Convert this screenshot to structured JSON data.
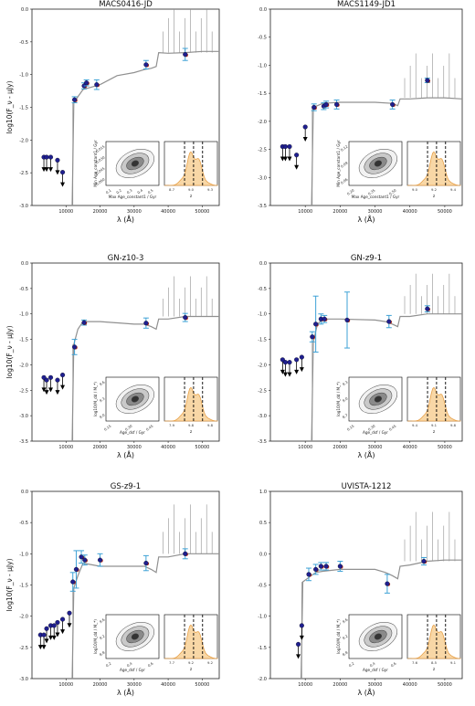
{
  "chart_data": [
    {
      "type": "line",
      "title": "MACS0416-JD",
      "xlabel": "λ (Å)",
      "ylabel": "log10(F_ν - μJy)",
      "ylim": [
        -3.25,
        0.0
      ],
      "xlim": [
        0,
        55000
      ],
      "yticks": [
        "-3.0",
        "-2.5",
        "-2.0",
        "-1.5",
        "-1.0",
        "-0.5",
        "0.0"
      ],
      "xticks": [
        "10000",
        "20000",
        "30000",
        "40000",
        "50000"
      ],
      "break": 12000,
      "model": [
        [
          11800,
          -3.4
        ],
        [
          12300,
          -1.55
        ],
        [
          13500,
          -1.45
        ],
        [
          15000,
          -1.33
        ],
        [
          20000,
          -1.25
        ],
        [
          25000,
          -1.1
        ],
        [
          30000,
          -1.05
        ],
        [
          33000,
          -1.0
        ],
        [
          35000,
          -0.98
        ],
        [
          36500,
          -0.95
        ],
        [
          37200,
          -0.72
        ],
        [
          40000,
          -0.73
        ],
        [
          45000,
          -0.72
        ],
        [
          50000,
          -0.7
        ],
        [
          55000,
          -0.7
        ]
      ],
      "detections": [
        [
          12500,
          -1.5,
          0.05
        ],
        [
          15300,
          -1.27,
          0.05
        ],
        [
          16000,
          -1.22,
          0.05
        ],
        [
          19000,
          -1.25,
          0.08
        ],
        [
          33500,
          -0.92,
          0.07
        ],
        [
          45000,
          -0.75,
          0.1
        ]
      ],
      "upper_limits": [
        [
          3500,
          -2.45
        ],
        [
          4300,
          -2.45
        ],
        [
          5500,
          -2.45
        ],
        [
          7500,
          -2.5
        ],
        [
          9000,
          -2.7
        ]
      ],
      "inset": {
        "contour_xlabel": "Max Age_constant1 / Gyr",
        "contour_ylabel": "Min Age_constant1 / Gyr",
        "contour_xticks": [
          "0.1",
          "0.2",
          "0.3",
          "0.4",
          "0.5"
        ],
        "contour_yticks": [
          "0.060",
          "0.045",
          "0.030",
          "0.015"
        ],
        "hist_xlabel": "z",
        "hist_xticks": [
          "8.7",
          "9.0",
          "9.3"
        ]
      }
    },
    {
      "type": "line",
      "title": "MACS1149-JD1",
      "xlabel": "λ (Å)",
      "ylabel": "",
      "ylim": [
        -3.5,
        0.0
      ],
      "xlim": [
        0,
        55000
      ],
      "yticks": [
        "-3.5",
        "-3.0",
        "-2.5",
        "-2.0",
        "-1.5",
        "-1.0",
        "-0.5",
        "0.0"
      ],
      "xticks": [
        "10000",
        "20000",
        "30000",
        "40000",
        "50000"
      ],
      "break": 12000,
      "model": [
        [
          11800,
          -3.6
        ],
        [
          12300,
          -1.75
        ],
        [
          13500,
          -1.72
        ],
        [
          15000,
          -1.68
        ],
        [
          20000,
          -1.66
        ],
        [
          30000,
          -1.66
        ],
        [
          35000,
          -1.68
        ],
        [
          36500,
          -1.72
        ],
        [
          37200,
          -1.6
        ],
        [
          40000,
          -1.6
        ],
        [
          45000,
          -1.58
        ],
        [
          50000,
          -1.58
        ],
        [
          55000,
          -1.6
        ]
      ],
      "detections": [
        [
          12500,
          -1.75,
          0.06
        ],
        [
          15300,
          -1.73,
          0.06
        ],
        [
          16000,
          -1.7,
          0.06
        ],
        [
          19000,
          -1.7,
          0.08
        ],
        [
          35000,
          -1.7,
          0.08
        ],
        [
          45000,
          -1.27,
          0.04
        ]
      ],
      "upper_limits": [
        [
          3500,
          -2.45
        ],
        [
          4300,
          -2.45
        ],
        [
          5500,
          -2.45
        ],
        [
          7500,
          -2.6
        ],
        [
          10000,
          -2.1
        ]
      ],
      "inset": {
        "contour_xlabel": "Max Age_constant1 / Gyr",
        "contour_ylabel": "Min Age_constant1 / Gyr",
        "contour_xticks": [
          "0.20",
          "0.35",
          "0.50"
        ],
        "contour_yticks": [
          "0.06",
          "0.09",
          "0.12"
        ],
        "hist_xlabel": "z",
        "hist_xticks": [
          "9.0",
          "9.2",
          "9.4"
        ]
      }
    },
    {
      "type": "line",
      "title": "GN-z10-3",
      "xlabel": "λ (Å)",
      "ylabel": "log10(F_ν - μJy)",
      "ylim": [
        -3.5,
        0.0
      ],
      "xlim": [
        0,
        55000
      ],
      "yticks": [
        "-3.5",
        "-3.0",
        "-2.5",
        "-2.0",
        "-1.5",
        "-1.0",
        "-0.5",
        "0.0"
      ],
      "xticks": [
        "10000",
        "20000",
        "30000",
        "40000",
        "50000"
      ],
      "break": 12000,
      "model": [
        [
          11800,
          -3.6
        ],
        [
          12300,
          -1.6
        ],
        [
          13500,
          -1.3
        ],
        [
          15000,
          -1.15
        ],
        [
          20000,
          -1.15
        ],
        [
          30000,
          -1.2
        ],
        [
          33000,
          -1.2
        ],
        [
          35000,
          -1.25
        ],
        [
          36500,
          -1.3
        ],
        [
          37200,
          -1.1
        ],
        [
          40000,
          -1.1
        ],
        [
          45000,
          -1.05
        ],
        [
          50000,
          -1.05
        ],
        [
          55000,
          -1.05
        ]
      ],
      "detections": [
        [
          12500,
          -1.65,
          0.15
        ],
        [
          15300,
          -1.17,
          0.05
        ],
        [
          33500,
          -1.18,
          0.1
        ],
        [
          45000,
          -1.07,
          0.08
        ]
      ],
      "upper_limits": [
        [
          3500,
          -2.25
        ],
        [
          4300,
          -2.3
        ],
        [
          5500,
          -2.25
        ],
        [
          7500,
          -2.3
        ],
        [
          9000,
          -2.2
        ]
      ],
      "inset": {
        "contour_xlabel": "Age_dsf / Gyr",
        "contour_ylabel": "log10(M_dd / M_*)",
        "contour_xticks": [
          "0.15",
          "0.30",
          "0.45"
        ],
        "contour_yticks": [
          "9.0",
          "9.3",
          "9.6"
        ],
        "hist_xlabel": "z",
        "hist_xticks": [
          "7.9",
          "9.8",
          "9.8"
        ]
      }
    },
    {
      "type": "line",
      "title": "GN-z9-1",
      "xlabel": "λ (Å)",
      "ylabel": "",
      "ylim": [
        -3.5,
        0.0
      ],
      "xlim": [
        0,
        55000
      ],
      "yticks": [
        "-3.5",
        "-3.0",
        "-2.5",
        "-2.0",
        "-1.5",
        "-1.0",
        "-0.5",
        "0.0"
      ],
      "xticks": [
        "10000",
        "20000",
        "30000",
        "40000",
        "50000"
      ],
      "break": 12000,
      "model": [
        [
          11800,
          -3.6
        ],
        [
          12300,
          -1.55
        ],
        [
          13500,
          -1.2
        ],
        [
          15000,
          -1.1
        ],
        [
          20000,
          -1.1
        ],
        [
          30000,
          -1.12
        ],
        [
          33000,
          -1.15
        ],
        [
          35000,
          -1.2
        ],
        [
          36500,
          -1.25
        ],
        [
          37200,
          -1.05
        ],
        [
          40000,
          -1.05
        ],
        [
          45000,
          -1.0
        ],
        [
          50000,
          -1.0
        ],
        [
          55000,
          -1.0
        ]
      ],
      "detections": [
        [
          12000,
          -1.45,
          0.1
        ],
        [
          13000,
          -1.2,
          0.55
        ],
        [
          14500,
          -1.1,
          0.1
        ],
        [
          15500,
          -1.1,
          0.07
        ],
        [
          22000,
          -1.12,
          0.55
        ],
        [
          34000,
          -1.15,
          0.12
        ],
        [
          45000,
          -0.9,
          0.06
        ]
      ],
      "upper_limits": [
        [
          3500,
          -1.9
        ],
        [
          4300,
          -1.95
        ],
        [
          5500,
          -1.95
        ],
        [
          7500,
          -1.9
        ],
        [
          9000,
          -1.85
        ]
      ],
      "inset": {
        "contour_xlabel": "Age_dsf / Gyr",
        "contour_ylabel": "log10(M_dd / M_*)",
        "contour_xticks": [
          "0.15",
          "0.30",
          "0.45"
        ],
        "contour_yticks": [
          "8.7",
          "9.0",
          "9.3"
        ],
        "hist_xlabel": "z",
        "hist_xticks": [
          "9.4",
          "9.1",
          "9.8"
        ]
      }
    },
    {
      "type": "line",
      "title": "GS-z9-1",
      "xlabel": "λ (Å)",
      "ylabel": "log10(F_ν - μJy)",
      "ylim": [
        -3.0,
        0.0
      ],
      "xlim": [
        0,
        55000
      ],
      "yticks": [
        "-3.0",
        "-2.5",
        "-2.0",
        "-1.5",
        "-1.0",
        "-0.5",
        "0.0"
      ],
      "xticks": [
        "10000",
        "20000",
        "30000",
        "40000",
        "50000"
      ],
      "break": 12000,
      "model": [
        [
          11800,
          -3.2
        ],
        [
          12300,
          -1.55
        ],
        [
          13500,
          -1.35
        ],
        [
          15000,
          -1.15
        ],
        [
          20000,
          -1.2
        ],
        [
          30000,
          -1.2
        ],
        [
          33000,
          -1.2
        ],
        [
          35000,
          -1.25
        ],
        [
          36500,
          -1.3
        ],
        [
          37200,
          -1.05
        ],
        [
          40000,
          -1.05
        ],
        [
          45000,
          -1.0
        ],
        [
          50000,
          -1.0
        ],
        [
          55000,
          -1.0
        ]
      ],
      "detections": [
        [
          12000,
          -1.45,
          0.15
        ],
        [
          13000,
          -1.25,
          0.3
        ],
        [
          14500,
          -1.05,
          0.1
        ],
        [
          15500,
          -1.1,
          0.08
        ],
        [
          20000,
          -1.1,
          0.1
        ],
        [
          33500,
          -1.15,
          0.12
        ],
        [
          45000,
          -1.0,
          0.08
        ]
      ],
      "upper_limits": [
        [
          2500,
          -2.3
        ],
        [
          3500,
          -2.3
        ],
        [
          4300,
          -2.2
        ],
        [
          5500,
          -2.15
        ],
        [
          6500,
          -2.15
        ],
        [
          7500,
          -2.1
        ],
        [
          9000,
          -2.05
        ],
        [
          11000,
          -1.95
        ]
      ],
      "inset": {
        "contour_xlabel": "Age_dsf / Gyr",
        "contour_ylabel": "log10(M_dd / M_*)",
        "contour_xticks": [
          "0.2",
          "0.4",
          "0.6"
        ],
        "contour_yticks": [
          "8.8",
          "9.2",
          "9.6"
        ],
        "hist_xlabel": "z",
        "hist_xticks": [
          "7.7",
          "9.2",
          "9.2"
        ]
      }
    },
    {
      "type": "line",
      "title": "UVISTA-1212",
      "xlabel": "λ (Å)",
      "ylabel": "",
      "ylim": [
        -2.0,
        1.0
      ],
      "xlim": [
        0,
        55000
      ],
      "yticks": [
        "-2.0",
        "-1.5",
        "-1.0",
        "-0.5",
        "0.0",
        "0.5",
        "1.0"
      ],
      "xticks": [
        "10000",
        "20000",
        "30000",
        "40000",
        "50000"
      ],
      "break": 9000,
      "model": [
        [
          8800,
          -2.2
        ],
        [
          9300,
          -0.45
        ],
        [
          11000,
          -0.38
        ],
        [
          13000,
          -0.3
        ],
        [
          15000,
          -0.28
        ],
        [
          20000,
          -0.25
        ],
        [
          30000,
          -0.25
        ],
        [
          33000,
          -0.3
        ],
        [
          35000,
          -0.35
        ],
        [
          36500,
          -0.4
        ],
        [
          37200,
          -0.2
        ],
        [
          40000,
          -0.18
        ],
        [
          45000,
          -0.12
        ],
        [
          50000,
          -0.1
        ],
        [
          55000,
          -0.1
        ]
      ],
      "detections": [
        [
          11000,
          -0.33,
          0.1
        ],
        [
          13000,
          -0.25,
          0.08
        ],
        [
          14500,
          -0.2,
          0.06
        ],
        [
          16000,
          -0.2,
          0.06
        ],
        [
          20000,
          -0.2,
          0.08
        ],
        [
          33500,
          -0.48,
          0.15
        ],
        [
          44000,
          -0.12,
          0.06
        ]
      ],
      "upper_limits": [
        [
          8000,
          -1.45
        ],
        [
          9000,
          -1.15
        ]
      ],
      "inset": {
        "contour_xlabel": "Age_dsf / Gyr",
        "contour_ylabel": "log10(M_dd / M_*)",
        "contour_xticks": [
          "0.2",
          "0.4",
          "0.6"
        ],
        "contour_yticks": [
          "8.8",
          "9.2",
          "9.6"
        ],
        "hist_xlabel": "z",
        "hist_xticks": [
          "7.6",
          "8.5",
          "9.1"
        ]
      }
    }
  ],
  "colors": {
    "model": "#909090",
    "point_fill": "#1f1f8f",
    "point_red": "#c0392b",
    "errorbar": "#3ea2d6",
    "hist_fill": "#f8d7a6",
    "hist_line": "#e7a14a",
    "contour": "#444444",
    "axes": "#222222"
  }
}
